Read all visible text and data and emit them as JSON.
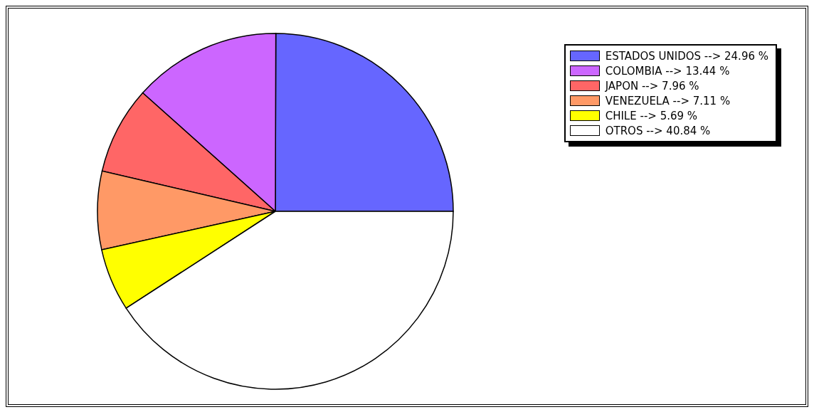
{
  "chart_data": {
    "type": "pie",
    "categories": [
      "ESTADOS UNIDOS --> 24.96 %",
      "COLOMBIA --> 13.44 %",
      "JAPON --> 7.96 %",
      "VENEZUELA --> 7.11 %",
      "CHILE --> 5.69 %",
      "OTROS --> 40.84 %"
    ],
    "values": [
      24.96,
      13.44,
      7.96,
      7.11,
      5.69,
      40.84
    ],
    "colors": [
      "#6666ff",
      "#cc66ff",
      "#ff6666",
      "#ff9966",
      "#ffff00",
      "#ffffff"
    ],
    "legend": "top right"
  }
}
